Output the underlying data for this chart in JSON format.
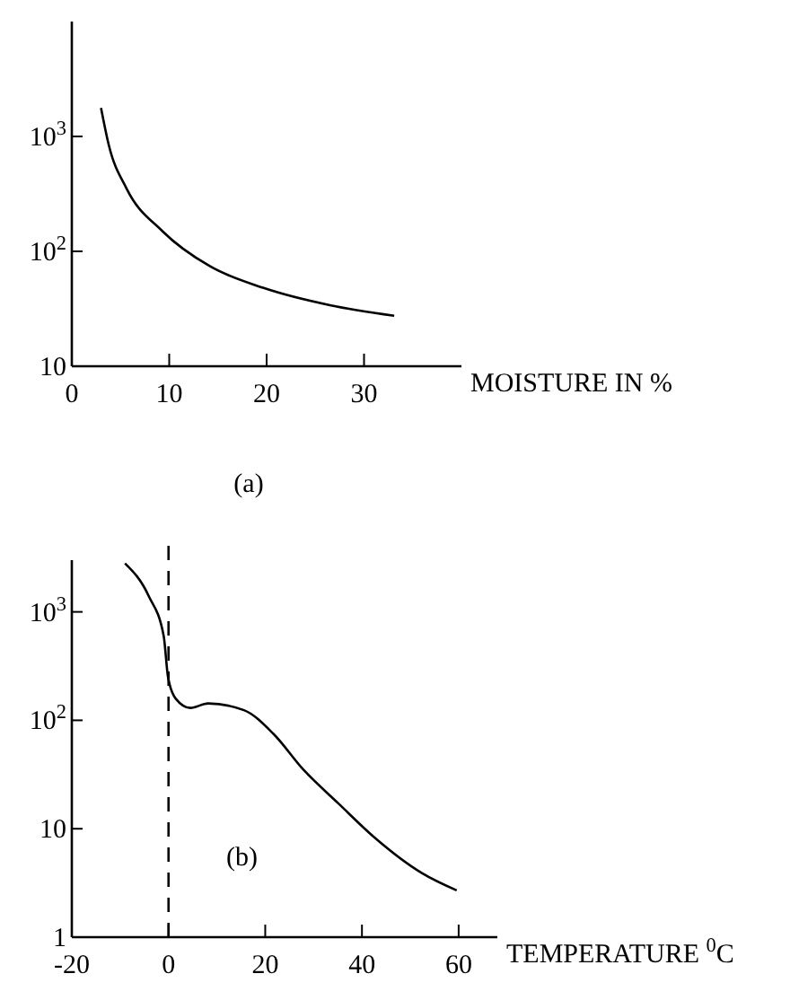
{
  "chart_data": [
    {
      "type": "line",
      "xlabel": "MOISTURE IN %",
      "annotations": [
        "(a)"
      ],
      "log": "y",
      "xlim": [
        0,
        40
      ],
      "ylim": [
        10,
        10000
      ],
      "xticks": [
        0,
        10,
        20,
        30
      ],
      "yticks": [
        {
          "value": 10,
          "label": "10"
        },
        {
          "value": 100,
          "label": "10$^{2}$"
        },
        {
          "value": 1000,
          "label": "10$^{3}$"
        }
      ],
      "grid": false,
      "series": [
        {
          "color": "#000000",
          "x": [
            3.0,
            3.8,
            5.6,
            9.3,
            14.2,
            19.7,
            26.5,
            33.1
          ],
          "values": [
            1770,
            840,
            355,
            150,
            74,
            48,
            34,
            27.5
          ]
        }
      ]
    },
    {
      "type": "line",
      "xlabel": "TEMPERATURE $^{0}$C",
      "annotations": [
        "(b)"
      ],
      "log": "y",
      "xlim": [
        -20,
        68
      ],
      "ylim": [
        1,
        3000
      ],
      "xticks": [
        -20,
        0,
        20,
        40,
        60
      ],
      "yticks": [
        1,
        10,
        {
          "value": 100,
          "label": "10$^{2}$"
        },
        {
          "value": 1000,
          "label": "10$^{3}$"
        }
      ],
      "grid": false,
      "ref_lines": [
        {
          "axis": "x",
          "value": 0,
          "color": "#000000",
          "line_style": "dashed"
        }
      ],
      "series": [
        {
          "color": "#000000",
          "x": [
            -9,
            -4.1,
            -1,
            -0.1,
            1.5,
            4.5,
            8.2,
            15.6,
            21.7,
            27.9,
            35.2,
            42.6,
            52.4,
            59.6
          ],
          "values": [
            2800,
            1400,
            600,
            250,
            158,
            130,
            143,
            124,
            75,
            35,
            17,
            8.3,
            3.9,
            2.7
          ]
        }
      ]
    }
  ]
}
